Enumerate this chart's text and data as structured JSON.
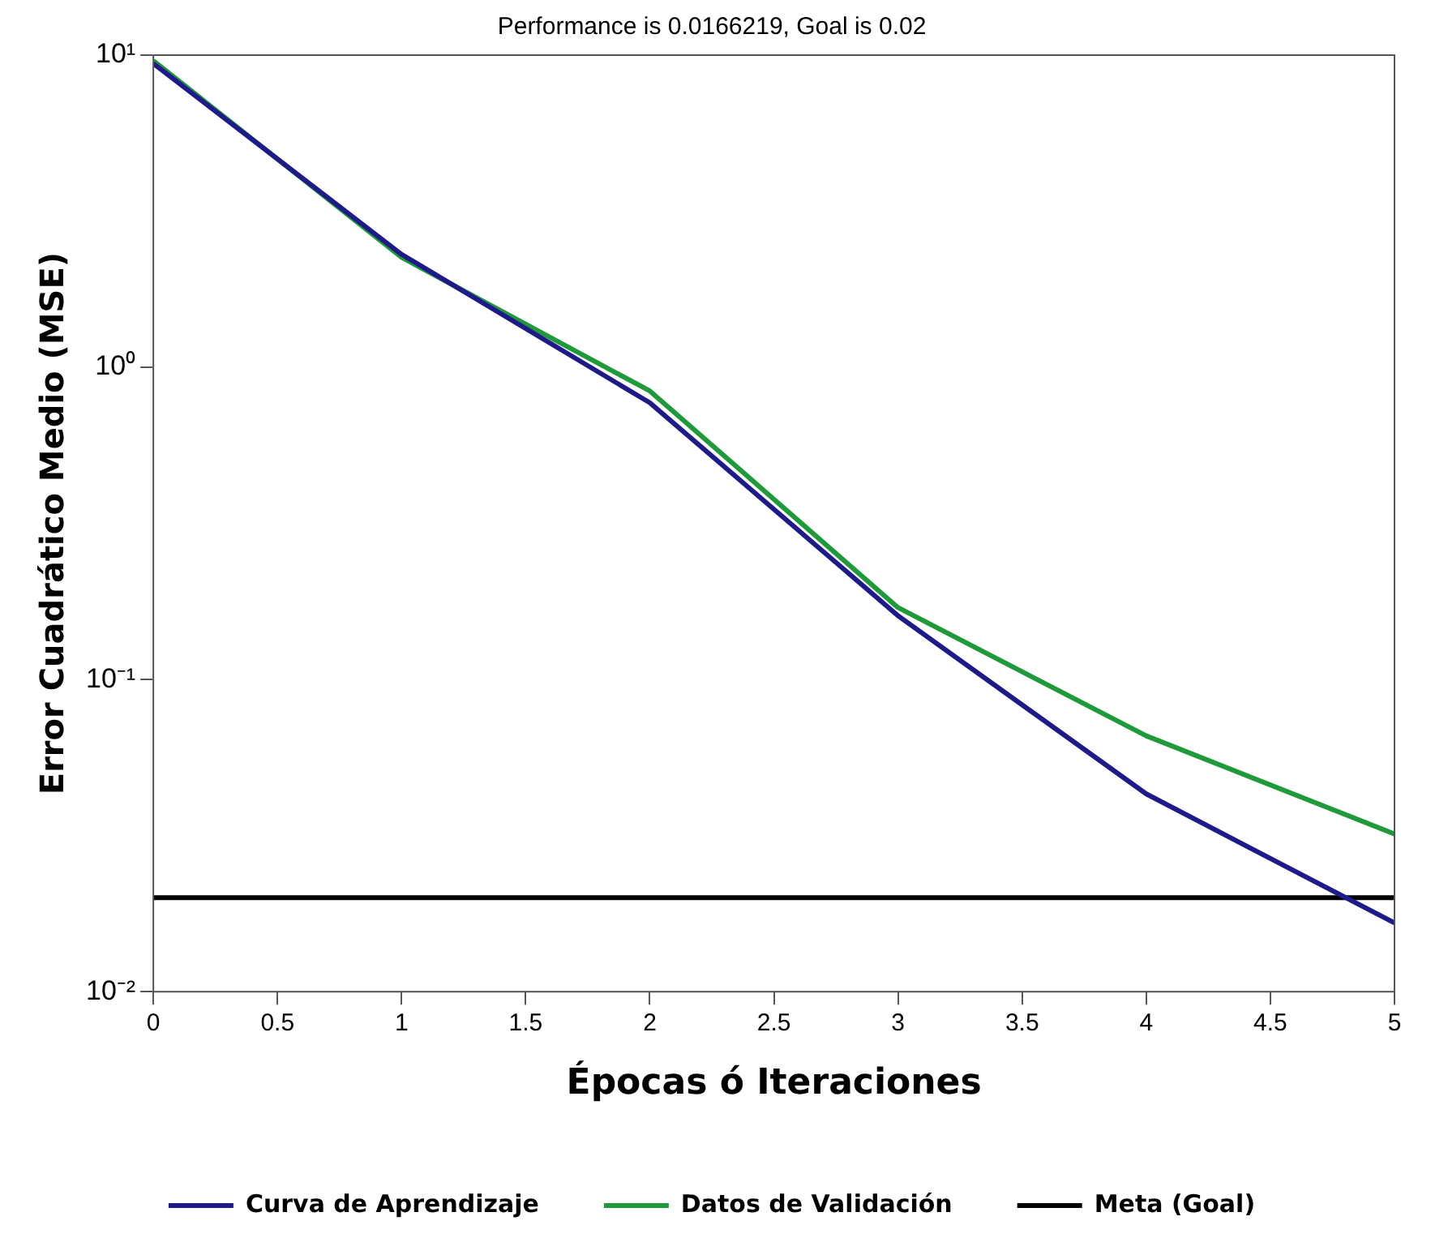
{
  "chart_data": {
    "type": "line",
    "title": "Performance is 0.0166219, Goal is 0.02",
    "xlabel": "Épocas ó Iteraciones",
    "ylabel": "Error Cuadrático Medio (MSE)",
    "x": [
      0,
      1,
      2,
      3,
      4,
      5
    ],
    "series": [
      {
        "name": "Curva de Aprendizaje",
        "color": "#1f1a8a",
        "values": [
          9.4,
          2.3,
          0.77,
          0.16,
          0.043,
          0.0166
        ]
      },
      {
        "name": "Datos de Validación",
        "color": "#1f9a3a",
        "values": [
          9.6,
          2.25,
          0.84,
          0.17,
          0.066,
          0.032
        ]
      },
      {
        "name": "Meta (Goal)",
        "color": "#000000",
        "values": [
          0.02,
          0.02,
          0.02,
          0.02,
          0.02,
          0.02
        ]
      }
    ],
    "xlim": [
      0,
      5
    ],
    "xticks": [
      0,
      0.5,
      1,
      1.5,
      2,
      2.5,
      3,
      3.5,
      4,
      4.5,
      5
    ],
    "ylim": [
      0.01,
      10
    ],
    "yticks": [
      {
        "value": 0.01,
        "label": "10⁻²"
      },
      {
        "value": 0.1,
        "label": "10⁻¹"
      },
      {
        "value": 1,
        "label": "10⁰"
      },
      {
        "value": 10,
        "label": "10¹"
      }
    ],
    "log": "y",
    "grid": false,
    "legend": "bottom",
    "marker": "none",
    "line_style": "solid"
  }
}
